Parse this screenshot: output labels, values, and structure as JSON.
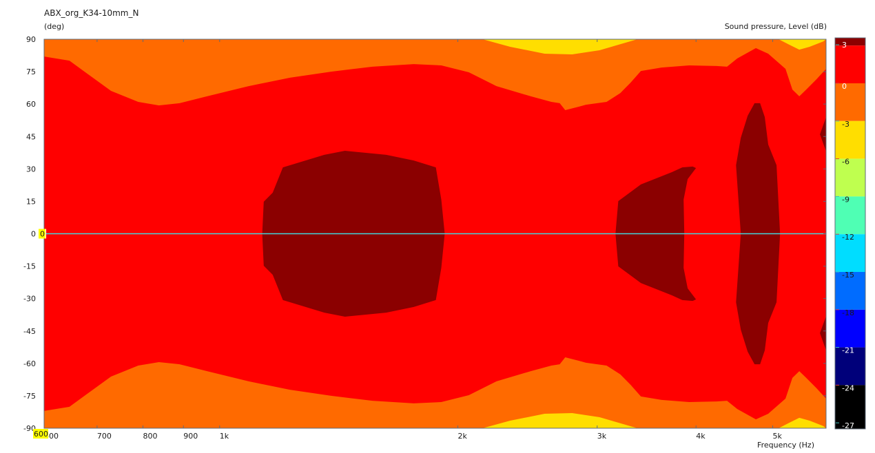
{
  "chart_data": {
    "type": "heatmap",
    "subtype": "filled-contour directivity plot",
    "title": "ABX_org_K34-10mm_N",
    "ylabel": "(deg)",
    "xlabel": "Frequency  (Hz)",
    "zlabel": "Sound pressure, Level  (dB)",
    "x_scale": "log",
    "xlim": [
      600,
      5840
    ],
    "ylim": [
      -90,
      90
    ],
    "x_ticks": [
      {
        "value": 600,
        "label": "600"
      },
      {
        "value": 700,
        "label": "700"
      },
      {
        "value": 800,
        "label": "800"
      },
      {
        "value": 900,
        "label": "900"
      },
      {
        "value": 1000,
        "label": "1k"
      },
      {
        "value": 2000,
        "label": "2k"
      },
      {
        "value": 3000,
        "label": "3k"
      },
      {
        "value": 4000,
        "label": "4k"
      },
      {
        "value": 5000,
        "label": "5k"
      }
    ],
    "y_ticks": [
      90,
      75,
      60,
      45,
      30,
      15,
      0,
      -15,
      -30,
      -45,
      -60,
      -75,
      -90
    ],
    "cursor": {
      "angle": 0,
      "angle_label": "0",
      "freq_label": "600",
      "color": "#40d8e0"
    },
    "symmetric_about_0deg": true,
    "levels": [
      {
        "label": "3",
        "value": 3,
        "color": "#8b0000"
      },
      {
        "label": "0",
        "value": 0,
        "color": "#ff0000"
      },
      {
        "label": "-3",
        "value": -3,
        "color": "#ff6a00"
      },
      {
        "label": "-6",
        "value": -6,
        "color": "#ffde00"
      },
      {
        "label": "-9",
        "value": -9,
        "color": "#bfff4f"
      },
      {
        "label": "-12",
        "value": -12,
        "color": "#4fffb4"
      },
      {
        "label": "-15",
        "value": -15,
        "color": "#00ddff"
      },
      {
        "label": "-18",
        "value": -18,
        "color": "#006cff"
      },
      {
        "label": "-21",
        "value": -21,
        "color": "#0000ff"
      },
      {
        "label": "-24",
        "value": -24,
        "color": "#00007a"
      },
      {
        "label": "-27",
        "value": -27,
        "color": "#000000"
      }
    ],
    "background_band": {
      "range_db": [
        -6,
        -3
      ],
      "color": "#ff6a00"
    },
    "regions_upper_half": [
      {
        "range_db": [
          -3,
          0
        ],
        "color": "#ff0000",
        "kind": "band",
        "boundary": [
          [
            600,
            82
          ],
          [
            646,
            80.1
          ],
          [
            686,
            73.1
          ],
          [
            729,
            66.1
          ],
          [
            789,
            61
          ],
          [
            838,
            59.4
          ],
          [
            890,
            60.4
          ],
          [
            964,
            63.6
          ],
          [
            1088,
            68.3
          ],
          [
            1227,
            72.2
          ],
          [
            1383,
            75
          ],
          [
            1560,
            77.3
          ],
          [
            1759,
            78.5
          ],
          [
            1906,
            77.9
          ],
          [
            2065,
            74.7
          ],
          [
            2238,
            68.3
          ],
          [
            2473,
            63.6
          ],
          [
            2626,
            61
          ],
          [
            2690,
            60.4
          ],
          [
            2734,
            57.2
          ],
          [
            2846,
            58.8
          ],
          [
            2904,
            59.7
          ],
          [
            3083,
            61
          ],
          [
            3209,
            65.1
          ],
          [
            3306,
            69.9
          ],
          [
            3407,
            75.3
          ],
          [
            3618,
            76.9
          ],
          [
            3920,
            77.9
          ],
          [
            4248,
            77.6
          ],
          [
            4377,
            77.3
          ],
          [
            4510,
            81.1
          ],
          [
            4761,
            85.9
          ],
          [
            4935,
            83.3
          ],
          [
            5190,
            76.3
          ],
          [
            5295,
            66.7
          ],
          [
            5402,
            63.6
          ],
          [
            5512,
            66.7
          ],
          [
            5680,
            71.5
          ],
          [
            5840,
            76.3
          ]
        ]
      },
      {
        "range_db": [
          -9,
          -6
        ],
        "color": "#ffde00",
        "kind": "blob",
        "boundary": [
          [
            2149,
            90
          ],
          [
            2329,
            86.5
          ],
          [
            2574,
            83.3
          ],
          [
            2789,
            83
          ],
          [
            3021,
            84.9
          ],
          [
            3373,
            90
          ]
        ]
      },
      {
        "range_db": [
          -9,
          -6
        ],
        "color": "#ffde00",
        "kind": "blob",
        "boundary": [
          [
            5087,
            90
          ],
          [
            5243,
            87.5
          ],
          [
            5402,
            85.2
          ],
          [
            5566,
            86.5
          ],
          [
            5795,
            89
          ],
          [
            5840,
            90
          ]
        ]
      },
      {
        "range_db": [
          0,
          3
        ],
        "color": "#8b0000",
        "kind": "blob",
        "boundary": [
          [
            1132,
            0
          ],
          [
            1137,
            14.8
          ],
          [
            1167,
            19
          ],
          [
            1202,
            30.7
          ],
          [
            1356,
            36.5
          ],
          [
            1440,
            38.4
          ],
          [
            1624,
            36.5
          ],
          [
            1759,
            33.9
          ],
          [
            1876,
            30.7
          ],
          [
            1906,
            15.8
          ],
          [
            1925,
            0
          ]
        ]
      },
      {
        "range_db": [
          0,
          3
        ],
        "color": "#8b0000",
        "kind": "blob",
        "boundary": [
          [
            3164,
            0
          ],
          [
            3190,
            15.1
          ],
          [
            3407,
            22.8
          ],
          [
            3729,
            28.5
          ],
          [
            3843,
            30.7
          ],
          [
            3961,
            31.1
          ],
          [
            4000,
            30.4
          ],
          [
            3904,
            25.3
          ],
          [
            3858,
            15.8
          ],
          [
            3866,
            0
          ]
        ]
      },
      {
        "range_db": [
          0,
          3
        ],
        "color": "#8b0000",
        "kind": "blob",
        "boundary": [
          [
            4556,
            0
          ],
          [
            4494,
            31.7
          ],
          [
            4556,
            44.4
          ],
          [
            4649,
            54.6
          ],
          [
            4743,
            60.4
          ],
          [
            4819,
            60.4
          ],
          [
            4886,
            54
          ],
          [
            4935,
            41.3
          ],
          [
            5056,
            31.7
          ],
          [
            5108,
            0
          ]
        ]
      },
      {
        "range_db": [
          0,
          3
        ],
        "color": "#8b0000",
        "kind": "edge",
        "boundary": [
          [
            5840,
            54
          ],
          [
            5737,
            46
          ],
          [
            5840,
            38.1
          ]
        ]
      }
    ]
  }
}
